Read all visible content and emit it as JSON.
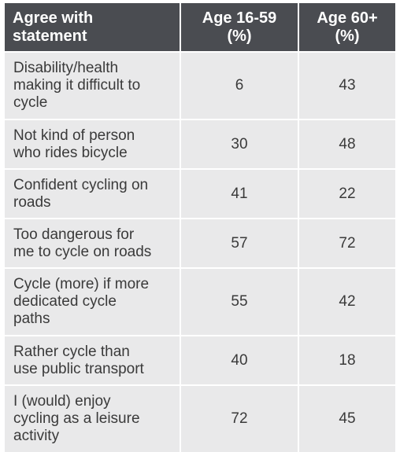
{
  "table": {
    "headers": [
      "Agree with statement",
      "Age 16-59 (%)",
      "Age 60+ (%)"
    ],
    "header_lines": [
      [
        "Agree with",
        "statement"
      ],
      [
        "Age 16-59",
        "(%)"
      ],
      [
        "Age 60+",
        "(%)"
      ]
    ],
    "rows": [
      {
        "statement": "Disability/health making it difficult to cycle",
        "lines": [
          "Disability/health",
          "making it difficult to",
          "cycle"
        ],
        "age_16_59": "6",
        "age_60_plus": "43"
      },
      {
        "statement": "Not kind of person who rides bicycle",
        "lines": [
          "Not kind of person",
          "who rides bicycle"
        ],
        "age_16_59": "30",
        "age_60_plus": "48"
      },
      {
        "statement": "Confident cycling on roads",
        "lines": [
          "Confident cycling on",
          "roads"
        ],
        "age_16_59": "41",
        "age_60_plus": "22"
      },
      {
        "statement": "Too dangerous for me to cycle on roads",
        "lines": [
          "Too dangerous for",
          "me to cycle on roads"
        ],
        "age_16_59": "57",
        "age_60_plus": "72"
      },
      {
        "statement": "Cycle (more) if more dedicated cycle paths",
        "lines": [
          "Cycle (more) if more",
          "dedicated cycle",
          "paths"
        ],
        "age_16_59": "55",
        "age_60_plus": "42"
      },
      {
        "statement": "Rather cycle than use public transport",
        "lines": [
          "Rather cycle than",
          "use public transport"
        ],
        "age_16_59": "40",
        "age_60_plus": "18"
      },
      {
        "statement": "I (would) enjoy cycling as a leisure activity",
        "lines": [
          "I (would) enjoy",
          "cycling as a leisure",
          "activity"
        ],
        "age_16_59": "72",
        "age_60_plus": "45"
      }
    ]
  },
  "colors": {
    "header_bg": "#4a4c51",
    "header_text": "#ffffff",
    "row_bg": "#e9e9ea",
    "row_text": "#3a3a3a",
    "divider": "#ffffff"
  }
}
